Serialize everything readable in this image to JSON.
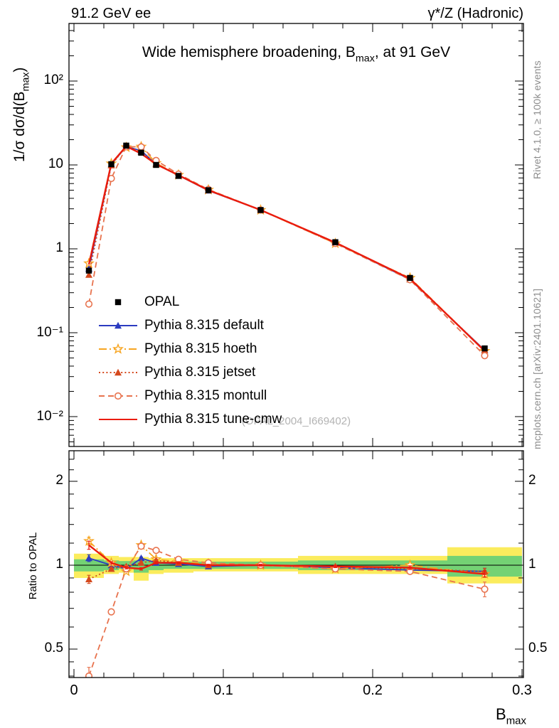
{
  "header": {
    "left": "91.2 GeV ee",
    "right": "γ*/Z (Hadronic)"
  },
  "title": {
    "pre": "Wide hemisphere broadening, B",
    "sub": "max",
    "post": ", at 91 GeV"
  },
  "watermark": "(OPAL_2004_I669402)",
  "side_notes": {
    "top": "Rivet 4.1.0, ≥ 100k events",
    "bottom": "mcplots.cern.ch [arXiv:2401.10621]"
  },
  "axes": {
    "main_ylabel": {
      "pre": "1/σ  dσ/d(B",
      "sub": "max",
      "post": ")"
    },
    "ratio_ylabel": "Ratio to OPAL",
    "xlabel": {
      "pre": "B",
      "sub": "max"
    },
    "x_ticks": [
      {
        "v": 0,
        "label": "0"
      },
      {
        "v": 0.1,
        "label": "0.1"
      },
      {
        "v": 0.2,
        "label": "0.2"
      },
      {
        "v": 0.3,
        "label": "0.3"
      }
    ],
    "main_y_ticks": [
      {
        "v": 100,
        "label": "10²"
      },
      {
        "v": 10,
        "label": "10"
      },
      {
        "v": 1,
        "label": "1"
      },
      {
        "v": 0.1,
        "label": "10⁻¹"
      },
      {
        "v": 0.01,
        "label": "10⁻²"
      }
    ],
    "ratio_y_ticks": [
      {
        "v": 2,
        "label": "2"
      },
      {
        "v": 1,
        "label": "1"
      },
      {
        "v": 0.5,
        "label": "0.5"
      }
    ]
  },
  "chart_data": {
    "type": "line",
    "title": "Wide hemisphere broadening, B_max, at 91 GeV",
    "xlabel": "B_max",
    "ylabel": "1/σ dσ/d(B_max)",
    "x_range": [
      0,
      0.3
    ],
    "main_y_scale": "log",
    "main_y_range": [
      0.0045,
      480
    ],
    "ratio_y_scale": "log",
    "ratio_y_range": [
      0.39,
      2.57
    ],
    "x": [
      0.01,
      0.025,
      0.035,
      0.045,
      0.055,
      0.07,
      0.09,
      0.125,
      0.175,
      0.225,
      0.275
    ],
    "bin_edges": [
      0,
      0.02,
      0.03,
      0.04,
      0.05,
      0.06,
      0.08,
      0.1,
      0.15,
      0.2,
      0.25,
      0.3
    ],
    "reference": {
      "name": "OPAL",
      "marker": "square",
      "color": "#000000",
      "values": [
        0.55,
        10.2,
        17.0,
        14.0,
        10.0,
        7.4,
        5.0,
        2.9,
        1.2,
        0.45,
        0.065
      ],
      "errors": [
        0.03,
        0.3,
        0.45,
        0.35,
        0.25,
        0.18,
        0.12,
        0.07,
        0.04,
        0.015,
        0.004
      ]
    },
    "series": [
      {
        "name": "Pythia 8.315 default",
        "color": "#2b3bc0",
        "marker": "triangle",
        "line": "solid",
        "values": [
          0.58,
          10.2,
          16.5,
          14.8,
          10.2,
          7.5,
          4.95,
          2.9,
          1.18,
          0.432,
          0.0618
        ],
        "ratio": [
          1.06,
          1.0,
          0.97,
          1.06,
          1.02,
          1.01,
          0.99,
          1.0,
          0.98,
          0.96,
          0.95
        ],
        "ratio_err": [
          0.03,
          0.01,
          0.01,
          0.01,
          0.01,
          0.01,
          0.008,
          0.008,
          0.01,
          0.015,
          0.025
        ]
      },
      {
        "name": "Pythia 8.315 hoeth",
        "color": "#f7a521",
        "marker": "star",
        "line": "dashdot",
        "values": [
          0.67,
          10.4,
          16.2,
          16.5,
          10.5,
          7.6,
          5.05,
          2.9,
          1.16,
          0.45,
          0.0605
        ],
        "ratio": [
          1.22,
          1.02,
          0.95,
          1.18,
          1.05,
          1.03,
          1.01,
          1.0,
          0.97,
          1.0,
          0.93
        ],
        "ratio_err": [
          0.04,
          0.01,
          0.01,
          0.01,
          0.01,
          0.01,
          0.008,
          0.008,
          0.01,
          0.015,
          0.025
        ]
      },
      {
        "name": "Pythia 8.315 jetset",
        "color": "#d5491d",
        "marker": "triangle",
        "line": "dotted",
        "values": [
          0.49,
          9.9,
          16.8,
          14.3,
          10.4,
          7.55,
          5.0,
          2.9,
          1.19,
          0.437,
          0.0618
        ],
        "ratio": [
          0.89,
          0.97,
          0.99,
          1.02,
          1.04,
          1.02,
          1.0,
          1.0,
          0.99,
          0.97,
          0.95
        ],
        "ratio_err": [
          0.03,
          0.01,
          0.01,
          0.01,
          0.01,
          0.01,
          0.008,
          0.008,
          0.01,
          0.015,
          0.025
        ]
      },
      {
        "name": "Pythia 8.315 montull",
        "color": "#e8734e",
        "marker": "circle",
        "line": "dashed",
        "values": [
          0.22,
          6.9,
          16.5,
          16.4,
          11.3,
          7.77,
          5.1,
          2.9,
          1.16,
          0.428,
          0.0533
        ],
        "ratio": [
          0.4,
          0.68,
          0.97,
          1.17,
          1.13,
          1.05,
          1.02,
          1.0,
          0.97,
          0.95,
          0.82
        ],
        "ratio_err": [
          0.03,
          0.012,
          0.01,
          0.012,
          0.01,
          0.01,
          0.008,
          0.008,
          0.01,
          0.018,
          0.05
        ]
      },
      {
        "name": "Pythia 8.315 tune-cmw",
        "color": "#ea1c0d",
        "marker": "none",
        "line": "solid",
        "values": [
          0.65,
          10.4,
          16.7,
          13.6,
          10.2,
          7.55,
          5.0,
          2.9,
          1.19,
          0.441,
          0.0605
        ],
        "ratio": [
          1.18,
          1.02,
          0.98,
          0.97,
          1.02,
          1.02,
          1.0,
          1.0,
          0.99,
          0.98,
          0.93
        ],
        "ratio_err": [
          0.04,
          0.01,
          0.01,
          0.01,
          0.01,
          0.01,
          0.008,
          0.008,
          0.01,
          0.015,
          0.025
        ]
      }
    ],
    "bands": {
      "yellow_color": "#fbec5d",
      "green_color": "#74d274",
      "bins": [
        {
          "x0": 0,
          "x1": 0.02,
          "yellow": [
            0.9,
            1.1
          ],
          "green": [
            0.95,
            1.05
          ]
        },
        {
          "x0": 0.02,
          "x1": 0.03,
          "yellow": [
            0.93,
            1.08
          ],
          "green": [
            0.96,
            1.04
          ]
        },
        {
          "x0": 0.03,
          "x1": 0.04,
          "yellow": [
            0.94,
            1.07
          ],
          "green": [
            0.97,
            1.035
          ]
        },
        {
          "x0": 0.04,
          "x1": 0.05,
          "yellow": [
            0.88,
            1.07
          ],
          "green": [
            0.94,
            1.04
          ]
        },
        {
          "x0": 0.05,
          "x1": 0.06,
          "yellow": [
            0.93,
            1.06
          ],
          "green": [
            0.96,
            1.03
          ]
        },
        {
          "x0": 0.06,
          "x1": 0.08,
          "yellow": [
            0.94,
            1.06
          ],
          "green": [
            0.97,
            1.03
          ]
        },
        {
          "x0": 0.08,
          "x1": 0.1,
          "yellow": [
            0.95,
            1.06
          ],
          "green": [
            0.97,
            1.03
          ]
        },
        {
          "x0": 0.1,
          "x1": 0.15,
          "yellow": [
            0.95,
            1.06
          ],
          "green": [
            0.97,
            1.03
          ]
        },
        {
          "x0": 0.15,
          "x1": 0.2,
          "yellow": [
            0.93,
            1.08
          ],
          "green": [
            0.96,
            1.04
          ]
        },
        {
          "x0": 0.2,
          "x1": 0.25,
          "yellow": [
            0.93,
            1.08
          ],
          "green": [
            0.96,
            1.04
          ]
        },
        {
          "x0": 0.25,
          "x1": 0.3,
          "yellow": [
            0.86,
            1.16
          ],
          "green": [
            0.91,
            1.08
          ]
        }
      ]
    }
  }
}
